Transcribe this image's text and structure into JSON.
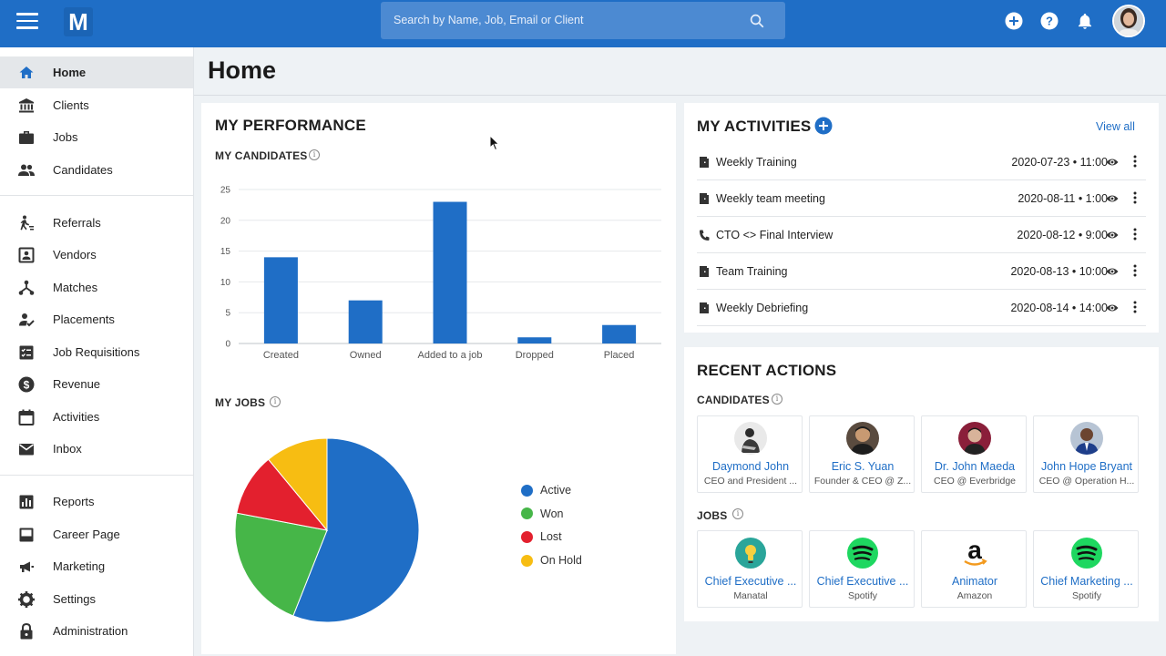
{
  "topbar": {
    "logo": "M",
    "search_placeholder": "Search by Name, Job, Email or Client",
    "icons": [
      "add-circle-icon",
      "help-icon",
      "bell-icon"
    ]
  },
  "sidebar": {
    "groups": [
      [
        {
          "label": "Home",
          "icon": "home-icon",
          "active": true
        },
        {
          "label": "Clients",
          "icon": "bank-icon"
        },
        {
          "label": "Jobs",
          "icon": "briefcase-icon"
        },
        {
          "label": "Candidates",
          "icon": "people-icon"
        }
      ],
      [
        {
          "label": "Referrals",
          "icon": "referral-icon"
        },
        {
          "label": "Vendors",
          "icon": "contact-card-icon"
        },
        {
          "label": "Matches",
          "icon": "match-icon"
        },
        {
          "label": "Placements",
          "icon": "person-check-icon"
        },
        {
          "label": "Job Requisitions",
          "icon": "checklist-icon"
        },
        {
          "label": "Revenue",
          "icon": "dollar-icon"
        },
        {
          "label": "Activities",
          "icon": "calendar-icon"
        },
        {
          "label": "Inbox",
          "icon": "mail-icon"
        }
      ],
      [
        {
          "label": "Reports",
          "icon": "bar-chart-icon"
        },
        {
          "label": "Career Page",
          "icon": "career-page-icon"
        },
        {
          "label": "Marketing",
          "icon": "megaphone-icon"
        },
        {
          "label": "Settings",
          "icon": "gear-icon"
        },
        {
          "label": "Administration",
          "icon": "lock-icon"
        }
      ]
    ]
  },
  "page": {
    "title": "Home"
  },
  "performance": {
    "title": "MY PERFORMANCE",
    "candidates_title": "MY CANDIDATES",
    "jobs_title": "MY JOBS"
  },
  "chart_data": [
    {
      "type": "bar",
      "categories": [
        "Created",
        "Owned",
        "Added to a job",
        "Dropped",
        "Placed"
      ],
      "values": [
        14,
        7,
        23,
        1,
        3
      ],
      "ylim": [
        0,
        25
      ],
      "yticks": [
        0,
        5,
        10,
        15,
        20,
        25
      ],
      "color": "#1f6ec6",
      "grid": true
    },
    {
      "type": "pie",
      "labels": [
        "Active",
        "Won",
        "Lost",
        "On Hold"
      ],
      "values": [
        56,
        22,
        11,
        11
      ],
      "colors": [
        "#1f6ec6",
        "#46b648",
        "#e3202e",
        "#f7bd12"
      ],
      "legend": "right"
    }
  ],
  "activities": {
    "title": "MY ACTIVITIES",
    "view_all": "View all",
    "items": [
      {
        "name": "Weekly Training",
        "date": "2020-07-23 • 11:00",
        "icon": "door-icon"
      },
      {
        "name": "Weekly team meeting",
        "date": "2020-08-11 • 1:00",
        "icon": "door-icon"
      },
      {
        "name": "CTO <> Final Interview",
        "date": "2020-08-12 • 9:00",
        "icon": "phone-icon"
      },
      {
        "name": "Team Training",
        "date": "2020-08-13 • 10:00",
        "icon": "door-icon"
      },
      {
        "name": "Weekly Debriefing",
        "date": "2020-08-14 • 14:00",
        "icon": "door-icon"
      }
    ]
  },
  "recent": {
    "title": "RECENT ACTIONS",
    "candidates_title": "CANDIDATES",
    "jobs_title": "JOBS",
    "candidates": [
      {
        "name": "Daymond John",
        "sub": "CEO and President ..."
      },
      {
        "name": "Eric S. Yuan",
        "sub": "Founder & CEO @ Z..."
      },
      {
        "name": "Dr. John Maeda",
        "sub": "CEO @ Everbridge"
      },
      {
        "name": "John Hope Bryant",
        "sub": "CEO @ Operation H..."
      }
    ],
    "jobs": [
      {
        "name": "Chief Executive ...",
        "sub": "Manatal",
        "logo": "lightbulb-logo-icon"
      },
      {
        "name": "Chief Executive ...",
        "sub": "Spotify",
        "logo": "spotify-logo-icon"
      },
      {
        "name": "Animator",
        "sub": "Amazon",
        "logo": "amazon-logo-icon"
      },
      {
        "name": "Chief Marketing ...",
        "sub": "Spotify",
        "logo": "spotify-logo-icon"
      }
    ]
  }
}
